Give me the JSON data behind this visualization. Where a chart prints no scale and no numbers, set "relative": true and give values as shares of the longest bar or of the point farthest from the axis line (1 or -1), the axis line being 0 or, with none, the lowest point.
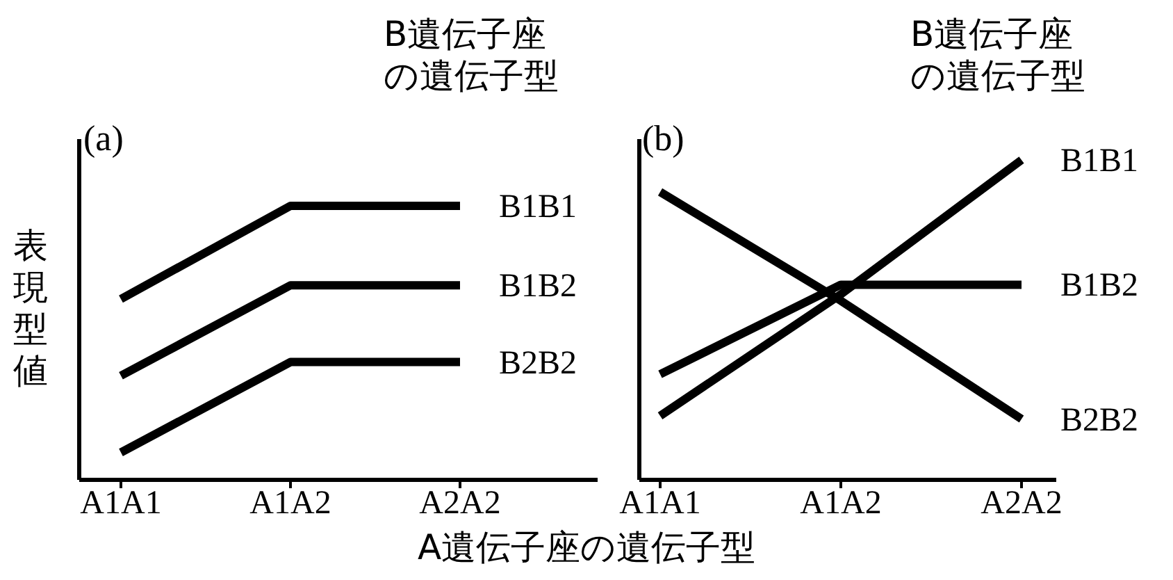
{
  "chart_data": [
    {
      "type": "line",
      "title": "(a)",
      "legend_title": "B遺伝子座の遺伝子型",
      "xlabel": "A遺伝子座の遺伝子型",
      "ylabel": "表現型値",
      "relative": true,
      "tick_labels": "x",
      "legend": false,
      "categories": [
        "A1A1",
        "A1A2",
        "A2A2"
      ],
      "series": [
        {
          "name": "B1B1",
          "color": "#000000",
          "values": [
            0.66,
            1,
            1
          ]
        },
        {
          "name": "B1B2",
          "color": "#000000",
          "values": [
            0.38,
            0.71,
            0.71
          ]
        },
        {
          "name": "B2B2",
          "color": "#000000",
          "values": [
            0.1,
            0.43,
            0.43
          ]
        }
      ]
    },
    {
      "type": "line",
      "title": "(b)",
      "legend_title": "B遺伝子座の遺伝子型",
      "relative": true,
      "tick_labels": "x",
      "legend": false,
      "categories": [
        "A1A1",
        "A1A2",
        "A2A2"
      ],
      "series": [
        {
          "name": "B1B1",
          "color": "#000000",
          "values": [
            0.2,
            0.58,
            1
          ]
        },
        {
          "name": "B1B2",
          "color": "#000000",
          "values": [
            0.33,
            0.61,
            0.61
          ]
        },
        {
          "name": "B2B2",
          "color": "#000000",
          "values": [
            0.9,
            0.56,
            0.19
          ]
        }
      ]
    }
  ]
}
